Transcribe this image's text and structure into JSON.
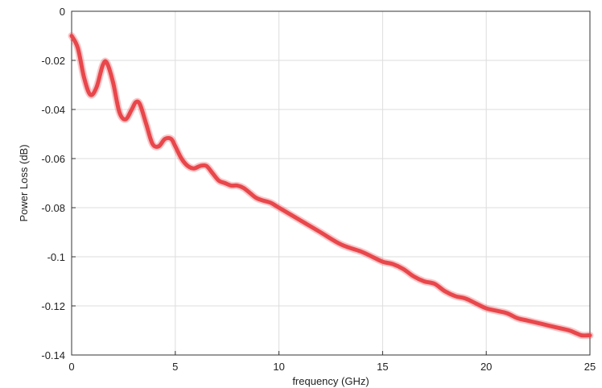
{
  "chart_data": {
    "type": "line",
    "xlabel": "frequency (GHz)",
    "ylabel": "Power Loss (dB)",
    "xlim": [
      0,
      25
    ],
    "ylim": [
      -0.14,
      0
    ],
    "x_ticks": [
      0,
      5,
      10,
      15,
      20,
      25
    ],
    "y_ticks": [
      0,
      -0.02,
      -0.04,
      -0.06,
      -0.08,
      -0.1,
      -0.12,
      -0.14
    ],
    "x_tick_labels": [
      "0",
      "5",
      "10",
      "15",
      "20",
      "25"
    ],
    "y_tick_labels": [
      "0",
      "-0.02",
      "-0.04",
      "-0.06",
      "-0.08",
      "-0.1",
      "-0.12",
      "-0.14"
    ],
    "grid": true,
    "legend": "none",
    "series": [
      {
        "color": "#e8474b",
        "x": [
          0,
          0.3,
          0.6,
          0.9,
          1.2,
          1.5,
          1.7,
          2.0,
          2.3,
          2.6,
          2.9,
          3.1,
          3.3,
          3.6,
          3.9,
          4.2,
          4.5,
          4.8,
          5.0,
          5.3,
          5.6,
          5.9,
          6.2,
          6.5,
          6.8,
          7.1,
          7.4,
          7.7,
          8.0,
          8.3,
          8.6,
          8.9,
          9.2,
          9.6,
          10.0,
          11.0,
          12.0,
          13.0,
          14.0,
          14.5,
          15.0,
          15.5,
          16.0,
          16.5,
          17.0,
          17.5,
          18.0,
          18.5,
          19.0,
          19.5,
          20.0,
          20.5,
          21.0,
          21.5,
          22.0,
          22.5,
          23.0,
          23.5,
          24.0,
          24.3,
          24.6,
          25.0
        ],
        "y": [
          -0.01,
          -0.015,
          -0.027,
          -0.034,
          -0.031,
          -0.022,
          -0.021,
          -0.029,
          -0.041,
          -0.044,
          -0.04,
          -0.037,
          -0.038,
          -0.046,
          -0.054,
          -0.055,
          -0.052,
          -0.052,
          -0.055,
          -0.06,
          -0.063,
          -0.064,
          -0.063,
          -0.063,
          -0.066,
          -0.069,
          -0.07,
          -0.071,
          -0.071,
          -0.072,
          -0.074,
          -0.076,
          -0.077,
          -0.078,
          -0.08,
          -0.085,
          -0.09,
          -0.095,
          -0.098,
          -0.1,
          -0.102,
          -0.103,
          -0.105,
          -0.108,
          -0.11,
          -0.111,
          -0.114,
          -0.116,
          -0.117,
          -0.119,
          -0.121,
          -0.122,
          -0.123,
          -0.125,
          -0.126,
          -0.127,
          -0.128,
          -0.129,
          -0.13,
          -0.131,
          -0.132,
          -0.132
        ]
      }
    ]
  }
}
